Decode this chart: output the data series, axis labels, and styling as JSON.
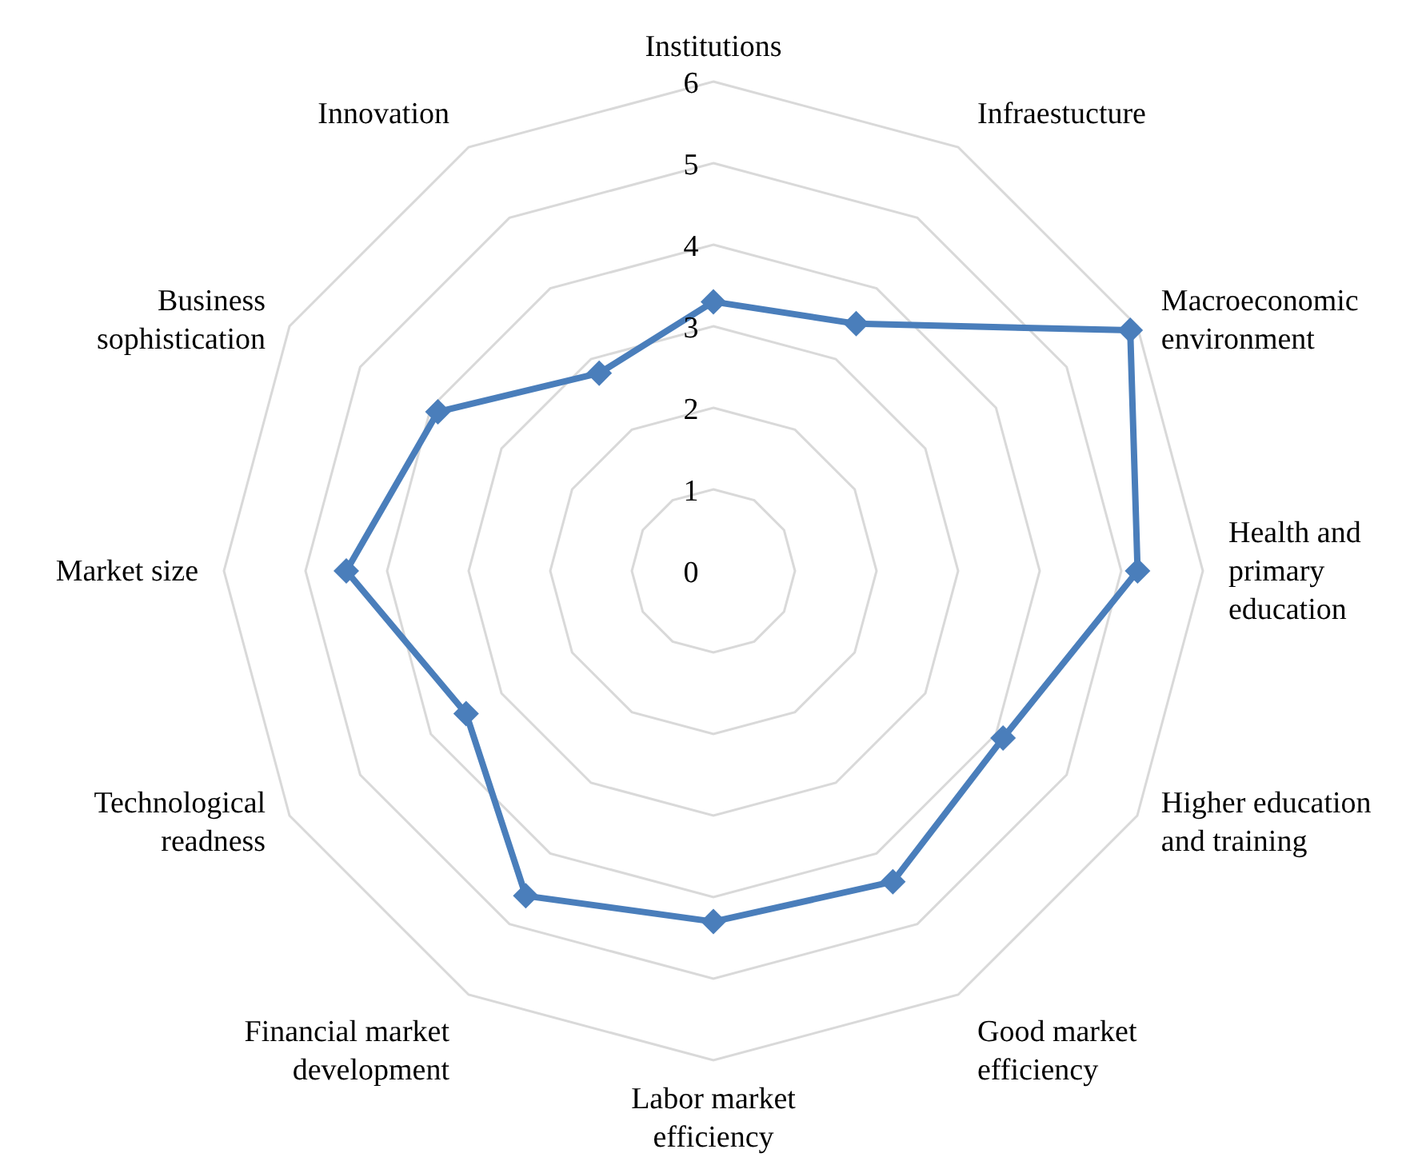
{
  "chart_data": {
    "type": "radar",
    "categories": [
      "Institutions",
      "Infraestucture",
      "Macroeconomic environment",
      "Health and primary education",
      "Higher education and training",
      "Good market efficiency",
      "Labor market efficiency",
      "Financial market development",
      "Technological readness",
      "Market size",
      "Business sophistication",
      "Innovation"
    ],
    "series": [
      {
        "color": "#4a7ebb",
        "values": [
          3.3,
          3.5,
          5.9,
          5.2,
          4.1,
          4.4,
          4.3,
          4.6,
          3.5,
          4.5,
          3.9,
          2.8
        ]
      }
    ],
    "ylim": [
      0,
      6
    ],
    "yticks": [
      0,
      1,
      2,
      3,
      4,
      5,
      6
    ],
    "grid": true,
    "marker": "diamond",
    "legend": false
  }
}
